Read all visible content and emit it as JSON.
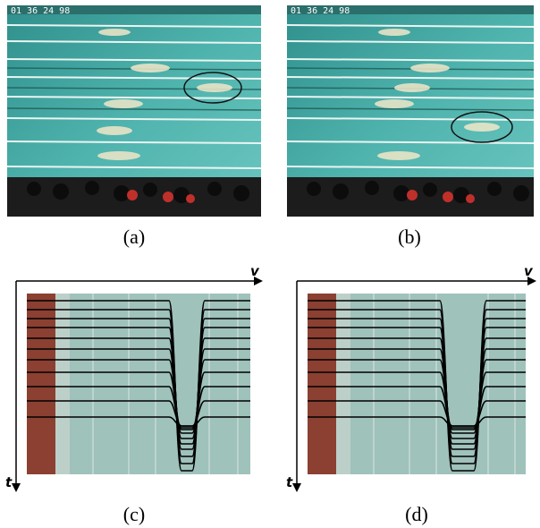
{
  "figure": {
    "panels": [
      {
        "id": "a",
        "caption": "(a)",
        "timecode": "01 36 24 98",
        "circle": "right-upper swimmer"
      },
      {
        "id": "b",
        "caption": "(b)",
        "timecode": "01 36 24 98",
        "circle": "right-lower swimmer"
      },
      {
        "id": "c",
        "caption": "(c)",
        "axis_h": "v",
        "axis_v": "t"
      },
      {
        "id": "d",
        "caption": "(d)",
        "axis_h": "v",
        "axis_v": "t"
      }
    ]
  },
  "colors": {
    "pool_water": "#3fa5a0",
    "pool_dark": "#2a7f80",
    "crowd": "#1a1a1a",
    "lane_line": "#ffffff",
    "slice_bg": "#9bbfb8",
    "slice_red": "#8a3b2e",
    "curve": "#000000"
  }
}
